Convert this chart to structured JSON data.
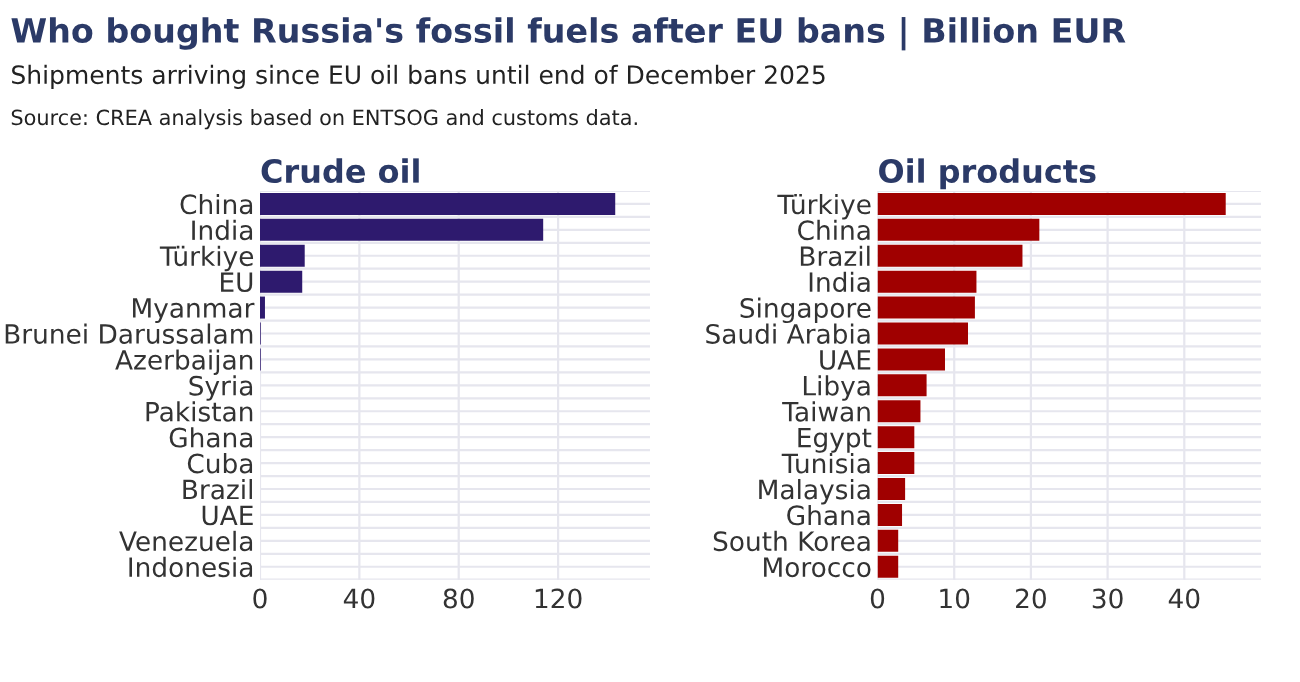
{
  "chart_data": [
    {
      "type": "bar",
      "orientation": "horizontal",
      "title": "Crude oil",
      "annotations": [
        "Who bought Russia's fossil fuels after EU bans | Billion EUR",
        "Shipments arriving since EU oil bans until end of December 2025",
        "Source: CREA analysis based on ENTSOG and customs data."
      ],
      "categories": [
        "China",
        "India",
        "Türkiye",
        "EU",
        "Myanmar",
        "Brunei Darussalam",
        "Azerbaijan",
        "Syria",
        "Pakistan",
        "Ghana",
        "Cuba",
        "Brazil",
        "UAE",
        "Venezuela",
        "Indonesia"
      ],
      "values": [
        143,
        114,
        18,
        17,
        2,
        0.3,
        0.3,
        0,
        0,
        0,
        0,
        0,
        0,
        0,
        0
      ],
      "color": "#2e1a6e",
      "xlim": [
        0,
        157
      ],
      "xticks": [
        0,
        40,
        80,
        120
      ],
      "grid": true
    },
    {
      "type": "bar",
      "orientation": "horizontal",
      "title": "Oil products",
      "categories": [
        "Türkiye",
        "China",
        "Brazil",
        "India",
        "Singapore",
        "Saudi Arabia",
        "UAE",
        "Libya",
        "Taiwan",
        "Egypt",
        "Tunisia",
        "Malaysia",
        "Ghana",
        "South Korea",
        "Morocco"
      ],
      "values": [
        45.4,
        21.1,
        18.9,
        12.9,
        12.7,
        11.8,
        8.8,
        6.4,
        5.6,
        4.8,
        4.8,
        3.6,
        3.2,
        2.7,
        2.7
      ],
      "color": "#a00000",
      "xlim": [
        0,
        50
      ],
      "xticks": [
        0,
        10,
        20,
        30,
        40
      ],
      "grid": true
    }
  ]
}
